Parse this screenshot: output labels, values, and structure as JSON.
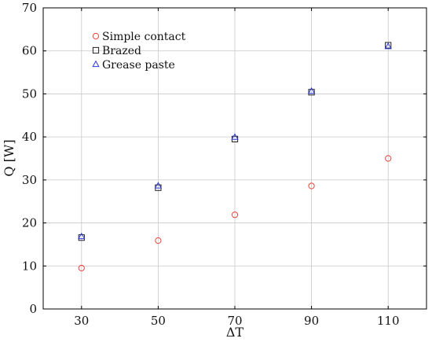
{
  "chart_data": {
    "type": "scatter",
    "title": "",
    "xlabel": "ΔT",
    "ylabel": "Q [W]",
    "xlim": [
      20,
      120
    ],
    "ylim": [
      0,
      70
    ],
    "x_ticks": [
      30,
      50,
      70,
      90,
      110
    ],
    "y_ticks": [
      0,
      10,
      20,
      30,
      40,
      50,
      60,
      70
    ],
    "grid": true,
    "legend_position": "top-left",
    "series": [
      {
        "name": "Simple contact",
        "marker": "circle",
        "color": "#e8423a",
        "points": [
          {
            "x": 30,
            "y": 9.5
          },
          {
            "x": 50,
            "y": 15.9
          },
          {
            "x": 70,
            "y": 21.9
          },
          {
            "x": 90,
            "y": 28.6
          },
          {
            "x": 110,
            "y": 35.0
          }
        ]
      },
      {
        "name": "Brazed",
        "marker": "square",
        "color": "#222222",
        "points": [
          {
            "x": 30,
            "y": 16.6
          },
          {
            "x": 50,
            "y": 28.2
          },
          {
            "x": 70,
            "y": 39.5
          },
          {
            "x": 90,
            "y": 50.4
          },
          {
            "x": 110,
            "y": 61.3
          }
        ]
      },
      {
        "name": "Grease paste",
        "marker": "triangle",
        "color": "#2d38d6",
        "points": [
          {
            "x": 30,
            "y": 16.8
          },
          {
            "x": 50,
            "y": 28.6
          },
          {
            "x": 70,
            "y": 39.9
          },
          {
            "x": 90,
            "y": 50.6
          },
          {
            "x": 110,
            "y": 61.0
          }
        ]
      }
    ]
  }
}
